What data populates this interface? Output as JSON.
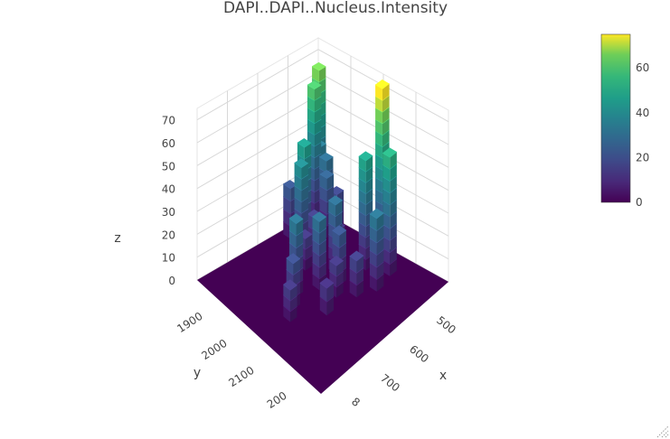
{
  "chart_data": {
    "type": "3d-bar-surface",
    "title": "DAPI..DAPI..Nucleus.Intensity",
    "xlabel": "x",
    "ylabel": "y",
    "zlabel": "z",
    "x_ticks": [
      "500",
      "600",
      "700",
      "8"
    ],
    "y_ticks": [
      "1900",
      "2000",
      "2100",
      "200"
    ],
    "z_ticks": [
      "0",
      "10",
      "20",
      "30",
      "40",
      "50",
      "60",
      "70"
    ],
    "colorbar_ticks": [
      "0",
      "20",
      "40",
      "60"
    ],
    "colorscale": "viridis",
    "zlim": [
      0,
      75
    ],
    "x_range": [
      450,
      820
    ],
    "y_range": [
      1850,
      2230
    ],
    "columns": [
      {
        "x": 470,
        "y": 1870,
        "z": 66
      },
      {
        "x": 475,
        "y": 1890,
        "z": 60
      },
      {
        "x": 480,
        "y": 1880,
        "z": 34
      },
      {
        "x": 500,
        "y": 1880,
        "z": 30
      },
      {
        "x": 520,
        "y": 1900,
        "z": 26
      },
      {
        "x": 530,
        "y": 1880,
        "z": 18
      },
      {
        "x": 540,
        "y": 1960,
        "z": 16
      },
      {
        "x": 470,
        "y": 1960,
        "z": 22
      },
      {
        "x": 520,
        "y": 1970,
        "z": 46
      },
      {
        "x": 530,
        "y": 1990,
        "z": 40
      },
      {
        "x": 560,
        "y": 2010,
        "z": 14
      },
      {
        "x": 580,
        "y": 1930,
        "z": 12
      },
      {
        "x": 610,
        "y": 1970,
        "z": 30
      },
      {
        "x": 640,
        "y": 1990,
        "z": 22
      },
      {
        "x": 660,
        "y": 1880,
        "z": 76
      },
      {
        "x": 650,
        "y": 1920,
        "z": 48
      },
      {
        "x": 700,
        "y": 1900,
        "z": 52
      },
      {
        "x": 710,
        "y": 1950,
        "z": 32
      },
      {
        "x": 690,
        "y": 1990,
        "z": 16
      },
      {
        "x": 660,
        "y": 2020,
        "z": 14
      },
      {
        "x": 620,
        "y": 2030,
        "z": 30
      },
      {
        "x": 680,
        "y": 2070,
        "z": 12
      },
      {
        "x": 600,
        "y": 2080,
        "z": 32
      },
      {
        "x": 620,
        "y": 2110,
        "z": 20
      },
      {
        "x": 640,
        "y": 2140,
        "z": 14
      }
    ]
  },
  "colors": {
    "floor": "#440154",
    "grid": "#d8d8d8",
    "text": "#444444",
    "resize_handle": "#999999"
  }
}
